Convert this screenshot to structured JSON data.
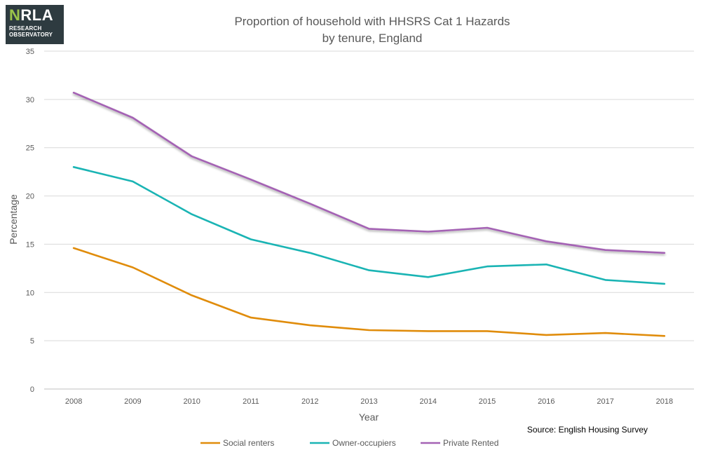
{
  "logo": {
    "brand_prefix": "N",
    "brand_rest": "RLA",
    "line1": "RESEARCH",
    "line2": "OBSERVATORY"
  },
  "chart_data": {
    "type": "line",
    "title_line1": "Proportion of household with HHSRS Cat 1 Hazards",
    "title_line2": "by tenure, England",
    "xlabel": "Year",
    "ylabel": "Percentage",
    "ylim": [
      0,
      35
    ],
    "yticks": [
      0,
      5,
      10,
      15,
      20,
      25,
      30,
      35
    ],
    "grid": true,
    "legend_position": "bottom",
    "source": "Source: English Housing Survey",
    "categories": [
      "2008",
      "2009",
      "2010",
      "2011",
      "2012",
      "2013",
      "2014",
      "2015",
      "2016",
      "2017",
      "2018"
    ],
    "series": [
      {
        "name": "Social renters",
        "color": "#e08c0b",
        "values": [
          14.6,
          12.6,
          9.7,
          7.4,
          6.6,
          6.1,
          6.0,
          6.0,
          5.6,
          5.8,
          5.5
        ]
      },
      {
        "name": "Owner-occupiers",
        "color": "#1ab4b4",
        "values": [
          23.0,
          21.5,
          18.1,
          15.5,
          14.1,
          12.3,
          11.6,
          12.7,
          12.9,
          11.3,
          10.9
        ]
      },
      {
        "name": "Private Rented",
        "color": "#a462b4",
        "values": [
          30.7,
          28.1,
          24.1,
          21.7,
          19.2,
          16.6,
          16.3,
          16.7,
          15.3,
          14.4,
          14.1
        ]
      }
    ]
  }
}
